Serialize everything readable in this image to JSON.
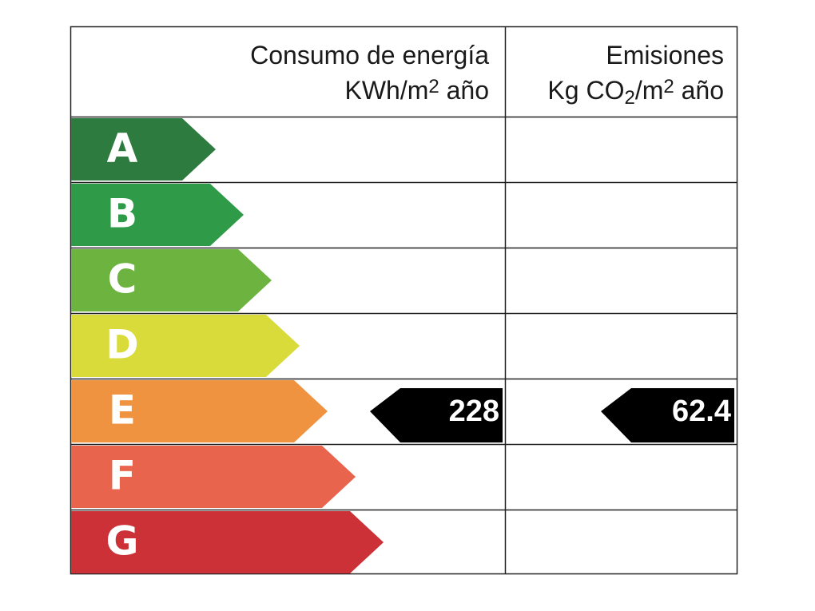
{
  "header": {
    "consumption": {
      "line1": "Consumo de energía",
      "line2": [
        "KWh/m",
        "2",
        " año"
      ]
    },
    "emissions": {
      "line1": "Emisiones",
      "line2": [
        "Kg CO",
        "2",
        "/m",
        "2",
        " año"
      ]
    }
  },
  "rows": [
    {
      "letter": "A",
      "color": "#2e7b3f"
    },
    {
      "letter": "B",
      "color": "#2f9a47"
    },
    {
      "letter": "C",
      "color": "#6db33f"
    },
    {
      "letter": "D",
      "color": "#d8db3a"
    },
    {
      "letter": "E",
      "color": "#ef9340",
      "consumption": 228,
      "emissions": 62.4
    },
    {
      "letter": "F",
      "color": "#e9644c"
    },
    {
      "letter": "G",
      "color": "#cb3136"
    }
  ]
}
